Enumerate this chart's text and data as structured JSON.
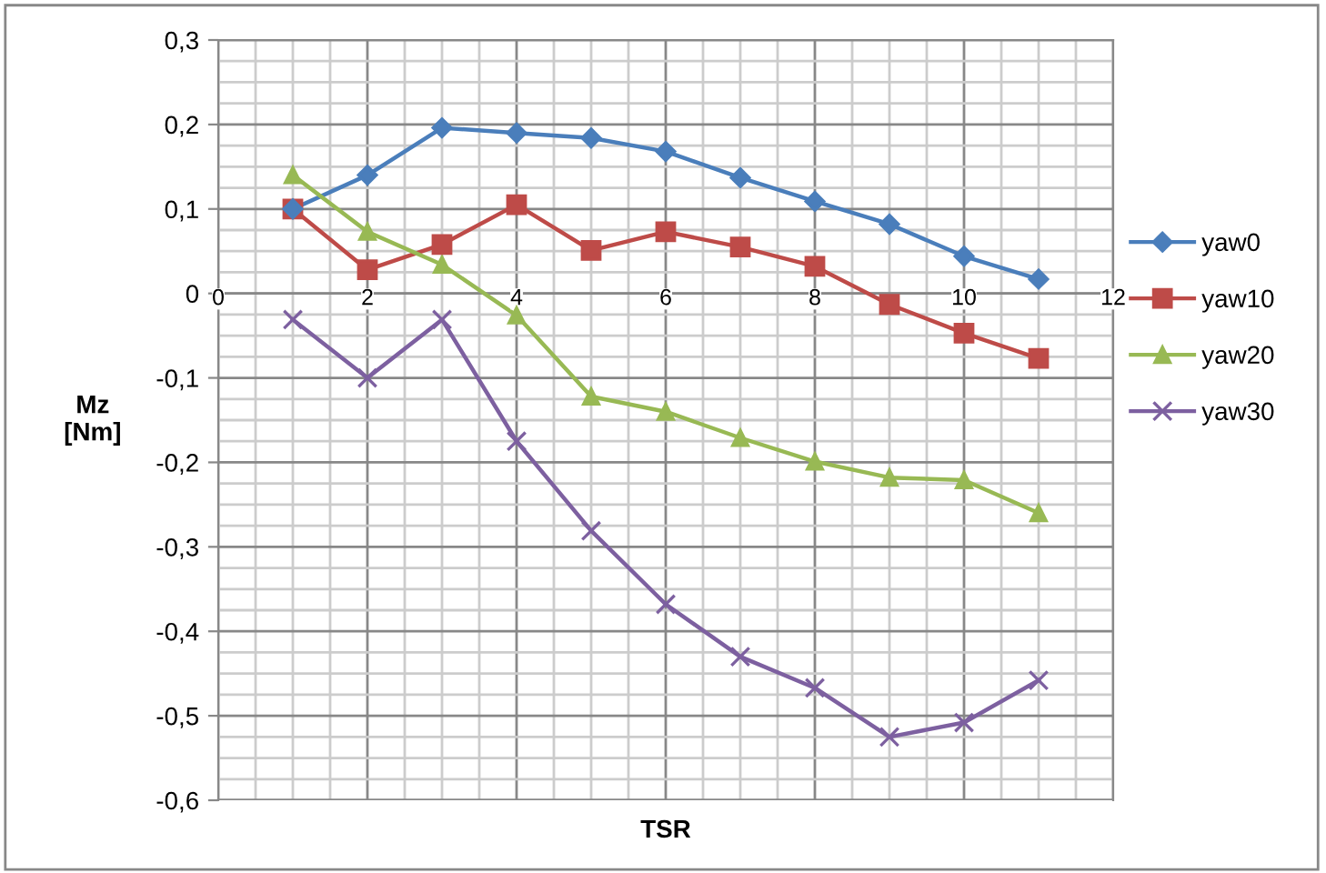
{
  "chart_data": {
    "type": "line",
    "xlabel": "TSR",
    "ylabel": "Mz\n[Nm]",
    "x": [
      1,
      2,
      3,
      4,
      5,
      6,
      7,
      8,
      9,
      10,
      11
    ],
    "xlim": [
      0,
      12
    ],
    "xticks": [
      0,
      2,
      4,
      6,
      8,
      10,
      12
    ],
    "ylim": [
      -0.6,
      0.3
    ],
    "yticks": [
      {
        "value": -0.6,
        "label": "-0,6"
      },
      {
        "value": -0.5,
        "label": "-0,5"
      },
      {
        "value": -0.4,
        "label": "-0,4"
      },
      {
        "value": -0.3,
        "label": "-0,3"
      },
      {
        "value": -0.2,
        "label": "-0,2"
      },
      {
        "value": -0.1,
        "label": "-0,1"
      },
      {
        "value": 0,
        "label": "0"
      },
      {
        "value": 0.1,
        "label": "0,1"
      },
      {
        "value": 0.2,
        "label": "0,2"
      },
      {
        "value": 0.3,
        "label": "0,3"
      }
    ],
    "grid": true,
    "legend": "right",
    "series": [
      {
        "name": "yaw0",
        "color": "#4a7ebb",
        "marker": "diamond",
        "values": [
          0.1,
          0.14,
          0.196,
          0.19,
          0.184,
          0.168,
          0.137,
          0.109,
          0.082,
          0.044,
          0.017
        ]
      },
      {
        "name": "yaw10",
        "color": "#be4b48",
        "marker": "square",
        "values": [
          0.1,
          0.028,
          0.058,
          0.105,
          0.051,
          0.073,
          0.055,
          0.032,
          -0.013,
          -0.047,
          -0.077
        ]
      },
      {
        "name": "yaw20",
        "color": "#98b954",
        "marker": "triangle",
        "values": [
          0.14,
          0.073,
          0.034,
          -0.026,
          -0.122,
          -0.14,
          -0.171,
          -0.199,
          -0.218,
          -0.221,
          -0.26
        ]
      },
      {
        "name": "yaw30",
        "color": "#7d60a0",
        "marker": "cross",
        "values": [
          -0.031,
          -0.1,
          -0.031,
          -0.175,
          -0.281,
          -0.368,
          -0.43,
          -0.467,
          -0.525,
          -0.508,
          -0.458
        ]
      }
    ]
  }
}
